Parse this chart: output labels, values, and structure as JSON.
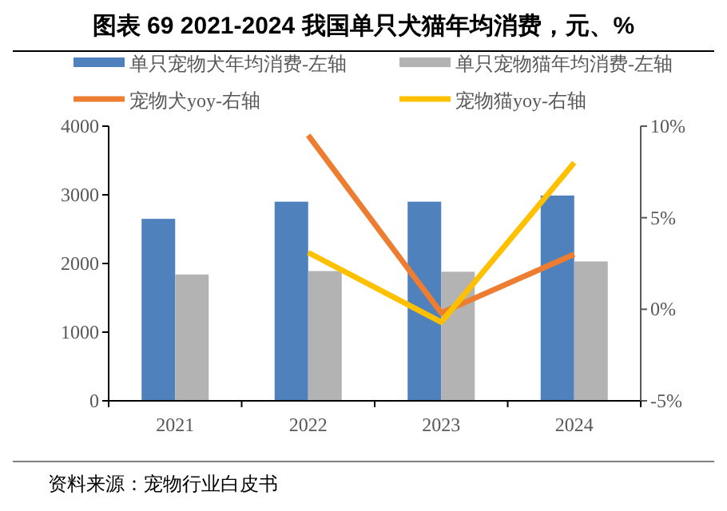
{
  "chart_data": {
    "type": "bar",
    "title": "图表 69 2021-2024 我国单只犬猫年均消费，元、%",
    "categories": [
      "2021",
      "2022",
      "2023",
      "2024"
    ],
    "series": [
      {
        "name": "单只宠物犬年均消费-左轴",
        "color": "#4f81bd",
        "values": [
          2650,
          2900,
          2900,
          2990
        ]
      },
      {
        "name": "单只宠物猫年均消费-左轴",
        "color": "#b3b3b3",
        "values": [
          1840,
          1890,
          1880,
          2030
        ]
      },
      {
        "name": "宠物犬yoy-右轴",
        "type": "line",
        "axis": "y2",
        "color": "#ed7d31",
        "values": [
          null,
          9.5,
          -0.2,
          3.0
        ]
      },
      {
        "name": "宠物猫yoy-右轴",
        "type": "line",
        "axis": "y2",
        "color": "#ffc000",
        "values": [
          null,
          3.1,
          -0.7,
          8.0
        ]
      }
    ],
    "ylim": [
      0,
      4000
    ],
    "yticks": [
      0,
      1000,
      2000,
      3000,
      4000
    ],
    "y2lim": [
      -5,
      10
    ],
    "y2ticks": [
      {
        "value": -5,
        "label": "-5%"
      },
      {
        "value": 0,
        "label": "0%"
      },
      {
        "value": 5,
        "label": "5%"
      },
      {
        "value": 10,
        "label": "10%"
      }
    ],
    "legend": "top",
    "annotations": [
      "资料来源：宠物行业白皮书"
    ]
  }
}
